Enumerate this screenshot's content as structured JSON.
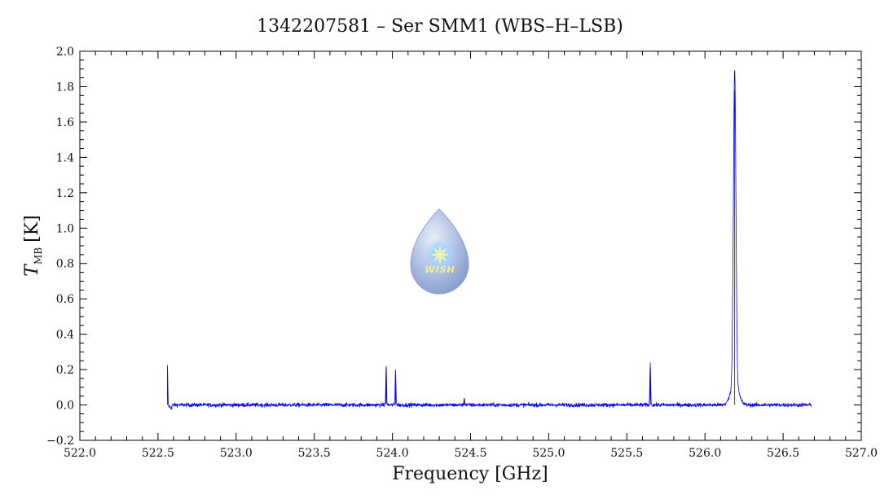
{
  "chart_data": {
    "type": "line",
    "title": "1342207581 – Ser SMM1 (WBS–H–LSB)",
    "xlabel": "Frequency [GHz]",
    "ylabel": {
      "symbol": "T",
      "subscript": "MB",
      "unit": "[K]"
    },
    "xlim": [
      522.0,
      527.0
    ],
    "ylim": [
      -0.2,
      2.0
    ],
    "x_ticks": [
      "522.0",
      "522.5",
      "523.0",
      "523.5",
      "524.0",
      "524.5",
      "525.0",
      "525.5",
      "526.0",
      "526.5",
      "527.0"
    ],
    "y_ticks": [
      "−0.2",
      "0.0",
      "0.2",
      "0.4",
      "0.6",
      "0.8",
      "1.0",
      "1.2",
      "1.4",
      "1.6",
      "1.8",
      "2.0"
    ],
    "grid": false,
    "series": [
      {
        "color": "#0000ff",
        "x_range": [
          522.56,
          526.68
        ],
        "baseline": 0.0,
        "noise_rms": 0.008,
        "lines": [
          {
            "x": 522.56,
            "peak": 0.22
          },
          {
            "x": 523.96,
            "peak": 0.22
          },
          {
            "x": 524.02,
            "peak": 0.2
          },
          {
            "x": 524.46,
            "peak": 0.04
          },
          {
            "x": 525.65,
            "peak": 0.24
          },
          {
            "x": 526.19,
            "peak": 1.78
          }
        ]
      }
    ]
  },
  "logo": {
    "text": "WISH"
  }
}
